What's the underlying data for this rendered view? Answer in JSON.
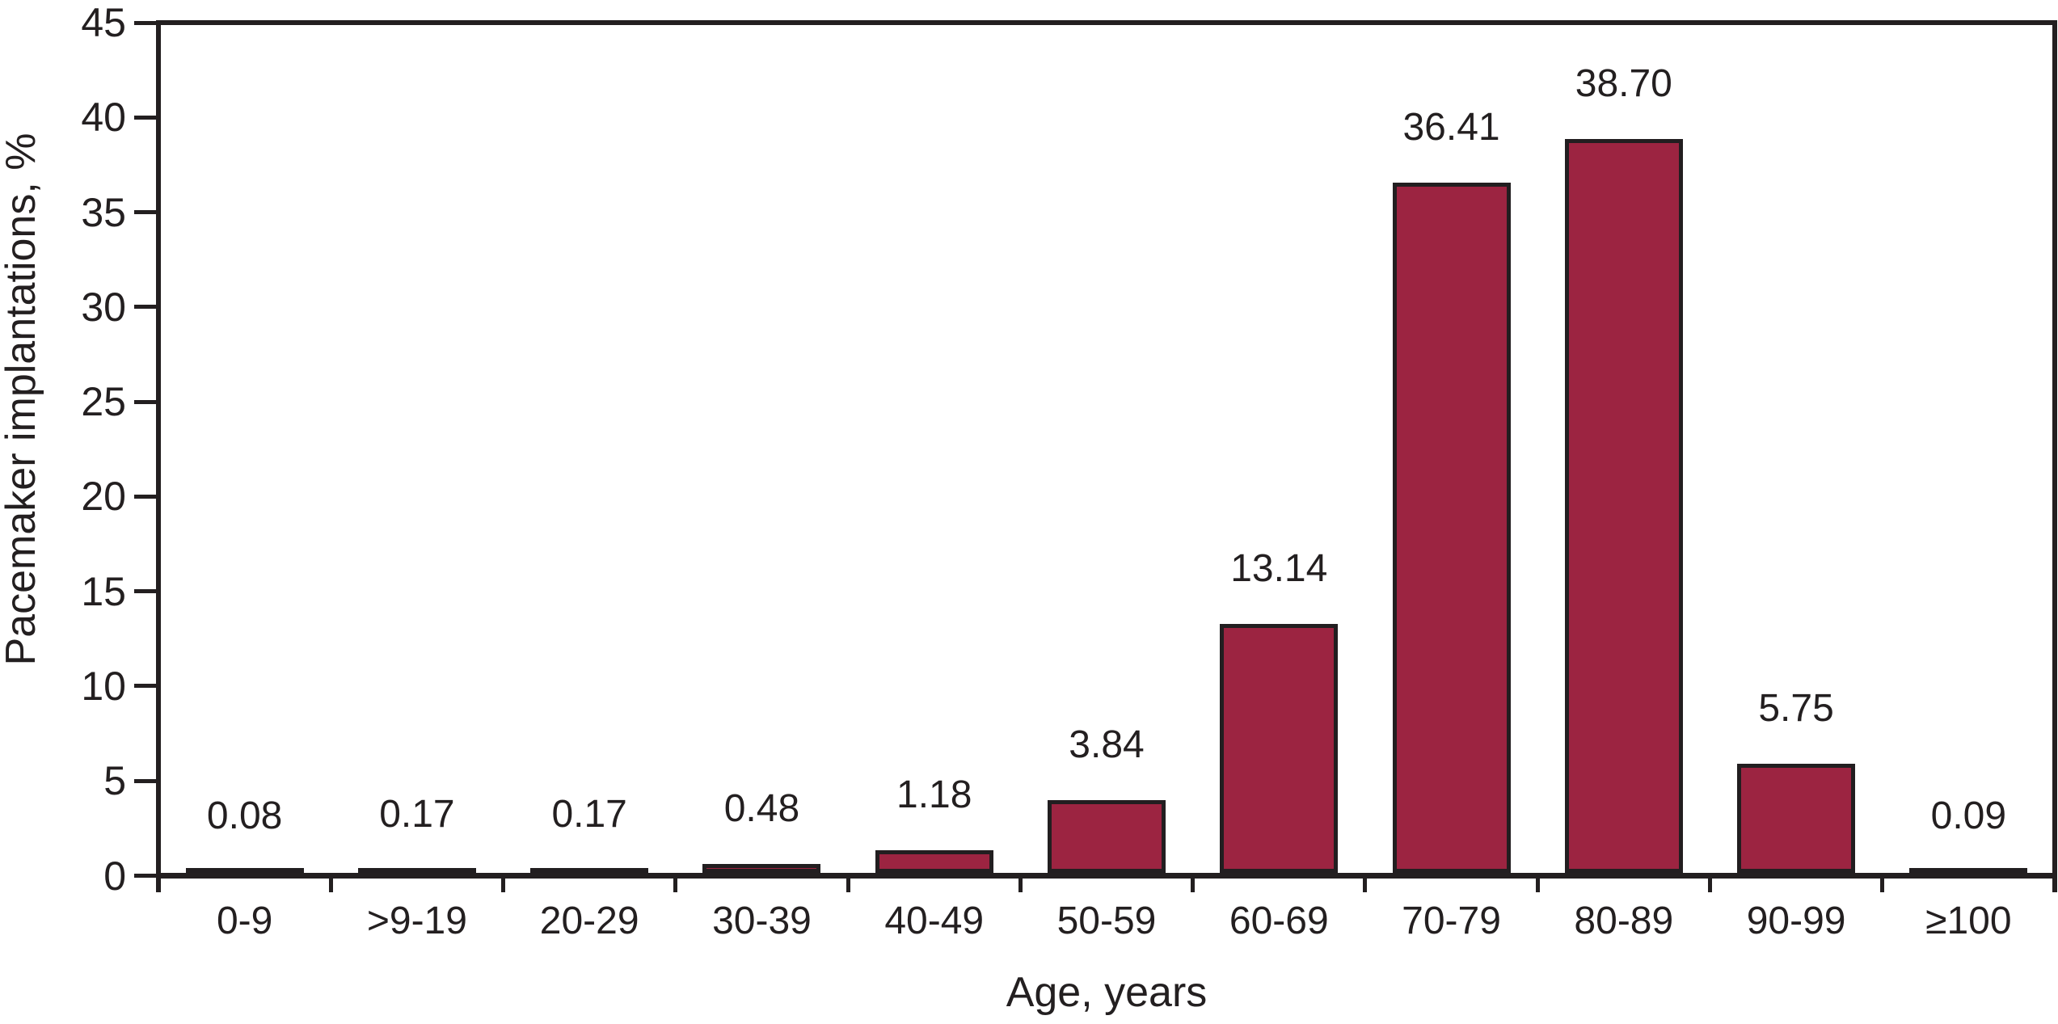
{
  "chart_data": {
    "type": "bar",
    "title": "",
    "xlabel": "Age, years",
    "ylabel": "Pacemaker implantations, %",
    "categories": [
      "0-9",
      ">9-19",
      "20-29",
      "30-39",
      "40-49",
      "50-59",
      "60-69",
      "70-79",
      "80-89",
      "90-99",
      "≥100"
    ],
    "values": [
      0.08,
      0.17,
      0.17,
      0.48,
      1.18,
      3.84,
      13.14,
      36.41,
      38.7,
      5.75,
      0.09
    ],
    "value_labels": [
      "0.08",
      "0.17",
      "0.17",
      "0.48",
      "1.18",
      "3.84",
      "13.14",
      "36.41",
      "38.70",
      "5.75",
      "0.09"
    ],
    "ylim": [
      0,
      45
    ],
    "ytick_values": [
      0,
      5,
      10,
      15,
      20,
      25,
      30,
      35,
      40,
      45
    ],
    "ytick_labels": [
      "0",
      "5",
      "10",
      "15",
      "20",
      "25",
      "30",
      "35",
      "40",
      "45"
    ],
    "grid": false,
    "legend": null,
    "bar_color": "#9C2441",
    "bar_border_color": "#221E20",
    "axis_color": "#231F20",
    "text_color": "#231F20",
    "background_color": "#FFFFFF"
  }
}
